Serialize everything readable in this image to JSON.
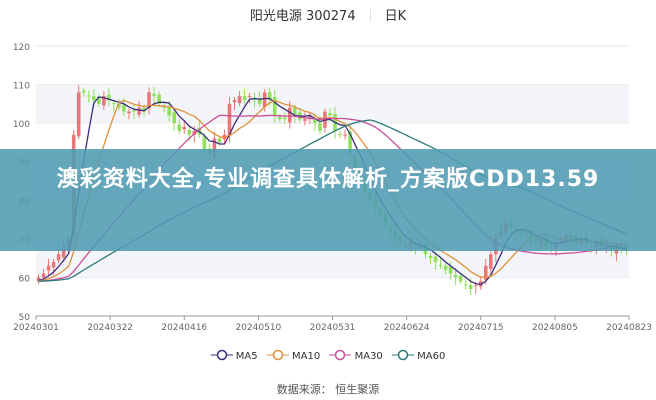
{
  "header": {
    "stock": "阳光电源 300274",
    "period": "日K"
  },
  "banner": {
    "text": "澳彩资料大全,专业调查具体解析_方案版CDD13.59"
  },
  "footer": {
    "source": "数据来源： 恒生聚源"
  },
  "colors": {
    "up": "#e8777a",
    "down": "#8fe05a",
    "MA5": "#3b2e7e",
    "MA10": "#e0903a",
    "MA30": "#c94f9a",
    "MA60": "#2b7a7a",
    "banner": "#509bb2"
  },
  "chart_data": {
    "type": "candlestick",
    "title": "阳光电源 300274 日K",
    "ylim": [
      50,
      120
    ],
    "yticks": [
      50,
      60,
      70,
      80,
      90,
      100,
      110,
      120
    ],
    "xticks": [
      "20240301",
      "20240322",
      "20240416",
      "20240510",
      "20240531",
      "20240624",
      "20240715",
      "20240805",
      "20240823"
    ],
    "grid": true,
    "legend": "bottom",
    "series": [
      {
        "name": "MA5"
      },
      {
        "name": "MA10"
      },
      {
        "name": "MA30"
      },
      {
        "name": "MA60"
      }
    ],
    "closes": [
      60,
      61,
      63,
      64,
      66,
      68,
      70,
      97,
      108,
      108,
      107,
      106,
      105,
      107,
      106,
      105,
      104,
      103,
      103,
      103,
      104,
      103,
      108,
      107,
      105,
      104,
      102,
      100,
      98,
      99,
      97,
      98,
      97,
      93,
      92,
      96,
      95,
      97,
      105,
      106,
      107,
      106,
      107,
      106,
      105,
      108,
      106,
      102,
      101,
      101,
      104,
      102,
      101,
      101,
      102,
      100,
      98,
      103,
      102,
      98,
      97,
      97,
      92,
      88,
      85,
      82,
      80,
      78,
      76,
      74,
      72,
      70,
      69,
      68,
      69,
      68,
      68,
      66,
      65,
      64,
      63,
      62,
      61,
      60,
      59,
      58,
      57,
      58,
      59,
      63,
      66,
      70,
      72,
      74,
      73,
      72,
      71,
      72,
      70,
      69,
      70,
      68,
      68,
      69,
      70,
      71,
      70,
      69,
      70,
      69,
      68,
      69,
      68,
      68,
      67,
      68,
      67,
      67
    ]
  }
}
